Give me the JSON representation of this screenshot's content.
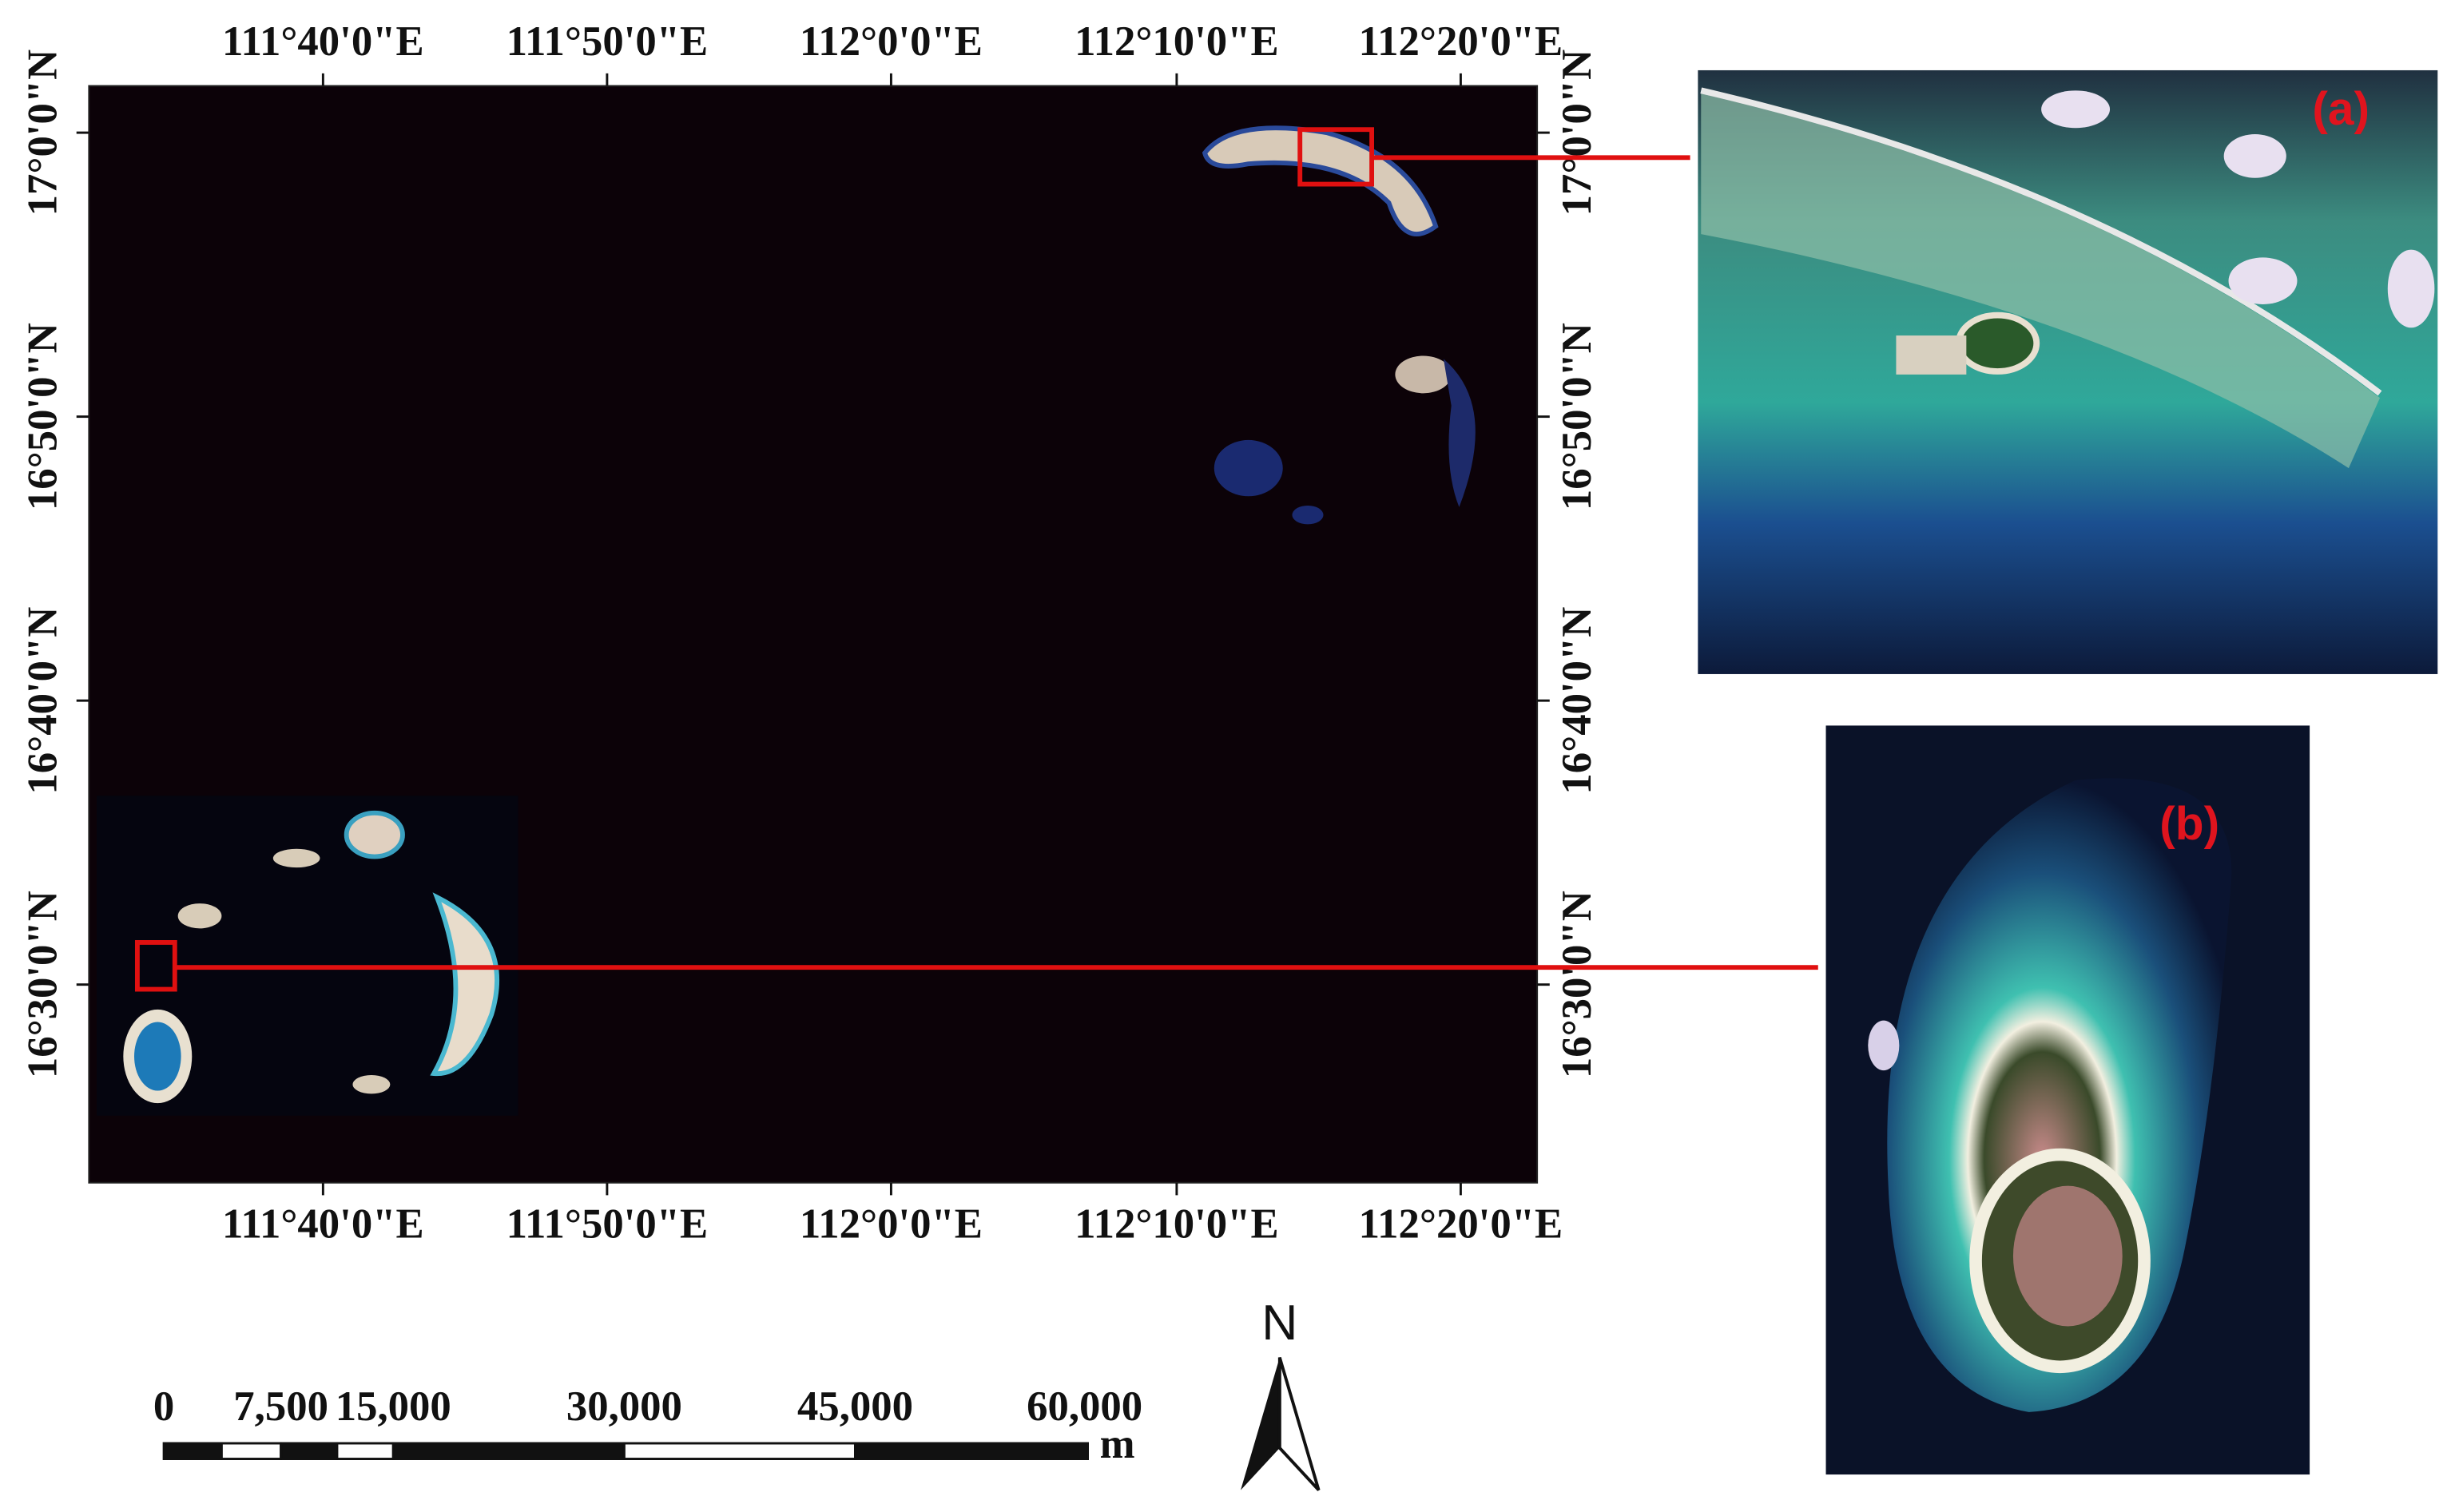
{
  "map": {
    "lon_labels": [
      "111°40'0\"E",
      "111°50'0\"E",
      "112°0'0\"E",
      "112°10'0\"E",
      "112°20'0\"E"
    ],
    "lat_labels": [
      "17°0'0\"N",
      "16°50'0\"N",
      "16°40'0\"N",
      "16°30'0\"N"
    ]
  },
  "scale_bar": {
    "labels": [
      "0",
      "7,500",
      "15,000",
      "30,000",
      "45,000",
      "60,000"
    ],
    "unit": "m"
  },
  "north_arrow": {
    "label": "N"
  },
  "insets": [
    {
      "label": "(a)"
    },
    {
      "label": "(b)"
    }
  ]
}
